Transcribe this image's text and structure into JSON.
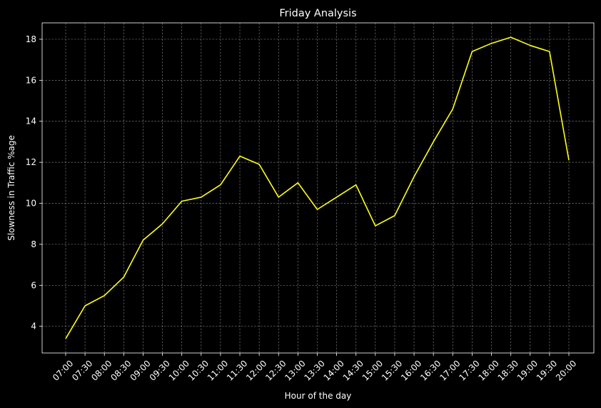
{
  "chart_data": {
    "type": "line",
    "title": "Friday Analysis",
    "xlabel": "Hour of the day",
    "ylabel": "Slowness in Traffic %age",
    "categories": [
      "07:00",
      "07:30",
      "08:00",
      "08:30",
      "09:00",
      "09:30",
      "10:00",
      "10:30",
      "11:00",
      "11:30",
      "12:00",
      "12:30",
      "13:00",
      "13:30",
      "14:00",
      "14:30",
      "15:00",
      "15:30",
      "16:00",
      "16:30",
      "17:00",
      "17:30",
      "18:00",
      "18:30",
      "19:00",
      "19:30",
      "20:00"
    ],
    "series": [
      {
        "values": [
          3.4,
          5.0,
          5.5,
          6.4,
          8.2,
          9.0,
          10.1,
          10.3,
          10.9,
          12.3,
          11.9,
          10.3,
          11.0,
          9.7,
          10.3,
          10.9,
          8.9,
          9.4,
          11.3,
          13.0,
          14.6,
          17.4,
          17.8,
          18.1,
          17.7,
          17.4,
          12.1
        ],
        "color": "#ffff14"
      }
    ],
    "ylim": [
      2.7,
      18.8
    ],
    "yticks": [
      4,
      6,
      8,
      10,
      12,
      14,
      16,
      18
    ],
    "xtick_rotation": 45,
    "grid": true,
    "background": "#000000",
    "foreground": "#ffffff"
  }
}
